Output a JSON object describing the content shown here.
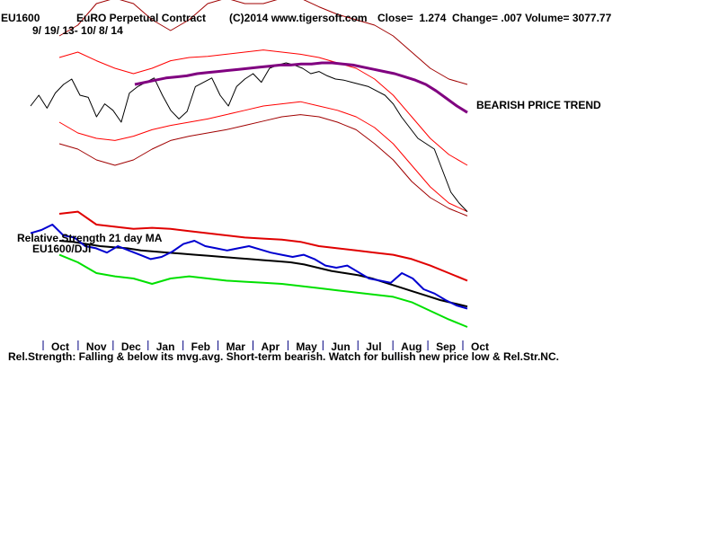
{
  "header": {
    "symbol": "EU1600",
    "name": "EuRO Perpetual Contract",
    "copyright": "(C)2014 www.tigersoft.com",
    "stats": "Close=  1.274  Change= .007 Volume= 3077.77",
    "date_range": "9/ 19/ 13- 10/ 8/ 14"
  },
  "annotations": {
    "trend": "BEARISH PRICE TREND",
    "rs_title": "Relative Strength 21 day MA",
    "rs_series": "EU1600/DJI",
    "footer": "Rel.Strength: Falling & below its mvg.avg. Short-term bearish. Watch for bullish new price low & Rel.Str.NC."
  },
  "colors": {
    "price": "#000000",
    "ma_purple": "#800080",
    "band_outer": "#a00000",
    "band_inner": "#ff0000",
    "rs_line": "#0000d0",
    "rs_ma": "#000000",
    "rs_upper": "#e00000",
    "rs_lower": "#00e000"
  },
  "chart_data": {
    "type": "line",
    "x_tick_labels": [
      "Oct",
      "Nov",
      "Dec",
      "Jan",
      "Feb",
      "Mar",
      "Apr",
      "May",
      "Jun",
      "Jul",
      "Aug",
      "Sep",
      "Oct"
    ],
    "price": {
      "name": "EU1600",
      "close": [
        0.6,
        0.7,
        0.58,
        0.72,
        0.8,
        0.85,
        0.7,
        0.68,
        0.5,
        0.62,
        0.56,
        0.45,
        0.72,
        0.78,
        0.82,
        0.86,
        0.7,
        0.56,
        0.48,
        0.55,
        0.78,
        0.82,
        0.86,
        0.7,
        0.6,
        0.78,
        0.85,
        0.9,
        0.82,
        0.95,
        0.98,
        1.0,
        0.98,
        0.95,
        0.9,
        0.92,
        0.88,
        0.85,
        0.84,
        0.82,
        0.8,
        0.78,
        0.74,
        0.7,
        0.62,
        0.5,
        0.4,
        0.3,
        0.25,
        0.2,
        0.0,
        -0.2,
        -0.3,
        -0.38
      ],
      "ma": [
        0.8,
        0.82,
        0.84,
        0.86,
        0.87,
        0.88,
        0.9,
        0.91,
        0.92,
        0.93,
        0.94,
        0.95,
        0.96,
        0.97,
        0.98,
        0.98,
        0.99,
        0.99,
        1.0,
        1.0,
        0.99,
        0.98,
        0.96,
        0.94,
        0.92,
        0.9,
        0.87,
        0.84,
        0.8,
        0.74,
        0.67,
        0.6,
        0.54
      ],
      "bands": {
        "outer_upper": [
          1.25,
          1.35,
          1.55,
          1.6,
          1.55,
          1.4,
          1.3,
          1.4,
          1.55,
          1.6,
          1.55,
          1.55,
          1.6,
          1.6,
          1.52,
          1.45,
          1.4,
          1.35,
          1.25,
          1.1,
          0.95,
          0.85,
          0.8
        ],
        "inner_upper": [
          1.05,
          1.1,
          1.02,
          0.95,
          0.9,
          0.95,
          1.02,
          1.05,
          1.06,
          1.08,
          1.1,
          1.12,
          1.1,
          1.08,
          1.05,
          1.0,
          0.95,
          0.85,
          0.7,
          0.5,
          0.3,
          0.15,
          0.05
        ],
        "inner_lower": [
          0.45,
          0.35,
          0.3,
          0.28,
          0.32,
          0.38,
          0.42,
          0.45,
          0.48,
          0.52,
          0.56,
          0.6,
          0.62,
          0.64,
          0.6,
          0.56,
          0.5,
          0.4,
          0.25,
          0.05,
          -0.15,
          -0.3,
          -0.38
        ],
        "outer_lower": [
          0.25,
          0.2,
          0.1,
          0.05,
          0.1,
          0.2,
          0.28,
          0.32,
          0.35,
          0.38,
          0.42,
          0.46,
          0.5,
          0.52,
          0.5,
          0.45,
          0.38,
          0.25,
          0.1,
          -0.1,
          -0.25,
          -0.35,
          -0.42
        ]
      }
    },
    "relative_strength": {
      "name": "EU1600/DJI",
      "rs": [
        0.92,
        0.95,
        1.0,
        0.9,
        0.88,
        0.8,
        0.78,
        0.74,
        0.8,
        0.76,
        0.72,
        0.68,
        0.7,
        0.75,
        0.82,
        0.85,
        0.8,
        0.78,
        0.76,
        0.78,
        0.8,
        0.77,
        0.74,
        0.72,
        0.7,
        0.72,
        0.68,
        0.62,
        0.6,
        0.62,
        0.56,
        0.5,
        0.48,
        0.46,
        0.55,
        0.5,
        0.4,
        0.36,
        0.3,
        0.25,
        0.22
      ],
      "ma_21": [
        0.85,
        0.84,
        0.82,
        0.8,
        0.79,
        0.78,
        0.76,
        0.75,
        0.74,
        0.73,
        0.72,
        0.71,
        0.7,
        0.69,
        0.68,
        0.67,
        0.66,
        0.65,
        0.63,
        0.6,
        0.57,
        0.55,
        0.53,
        0.5,
        0.46,
        0.42,
        0.38,
        0.34,
        0.3,
        0.27,
        0.24
      ],
      "upper_band": [
        1.1,
        1.12,
        1.0,
        0.98,
        0.96,
        0.97,
        0.96,
        0.94,
        0.92,
        0.9,
        0.88,
        0.87,
        0.86,
        0.84,
        0.8,
        0.78,
        0.76,
        0.74,
        0.72,
        0.68,
        0.62,
        0.55,
        0.48
      ],
      "lower_band": [
        0.72,
        0.65,
        0.55,
        0.52,
        0.5,
        0.45,
        0.5,
        0.52,
        0.5,
        0.48,
        0.47,
        0.46,
        0.45,
        0.43,
        0.41,
        0.39,
        0.37,
        0.35,
        0.33,
        0.28,
        0.2,
        0.12,
        0.05
      ]
    }
  }
}
